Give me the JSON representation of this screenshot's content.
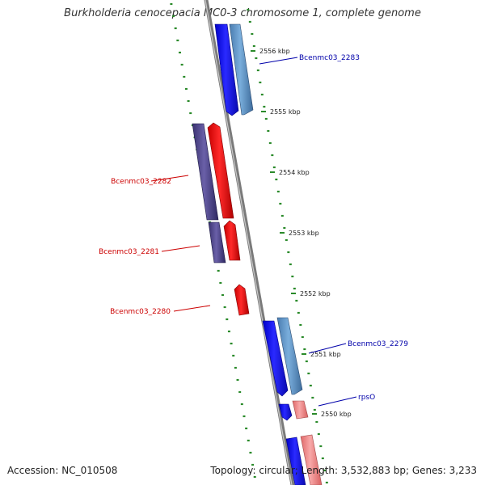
{
  "title": "Burkholderia cenocepacia MC0-3 chromosome 1, complete genome",
  "footer": {
    "accession": "Accession: NC_010508",
    "summary": "Topology: circular; Length: 3,532,883 bp; Genes: 3,233"
  },
  "colors": {
    "backbone": "#888888",
    "gc_ticks": "#2a8a2a",
    "forward_cds": "#1010ee",
    "forward_gene": "#5a8ec0",
    "reverse_cds": "#ee1111",
    "reverse_gene": "#4a4080",
    "forward_label": "#0000aa",
    "reverse_label": "#cc0000",
    "rrna_light": "#f08080"
  },
  "ticks": [
    {
      "label": "2556 kbp"
    },
    {
      "label": "2555 kbp"
    },
    {
      "label": "2554 kbp"
    },
    {
      "label": "2553 kbp"
    },
    {
      "label": "2552 kbp"
    },
    {
      "label": "2551 kbp"
    },
    {
      "label": "2550 kbp"
    }
  ],
  "genes": [
    {
      "label": "Bcenmc03_2283",
      "strand": "forward"
    },
    {
      "label": "Bcenmc03_2282",
      "strand": "reverse"
    },
    {
      "label": "Bcenmc03_2281",
      "strand": "reverse"
    },
    {
      "label": "Bcenmc03_2280",
      "strand": "reverse"
    },
    {
      "label": "Bcenmc03_2279",
      "strand": "forward"
    },
    {
      "label": "rpsO",
      "strand": "forward"
    }
  ]
}
